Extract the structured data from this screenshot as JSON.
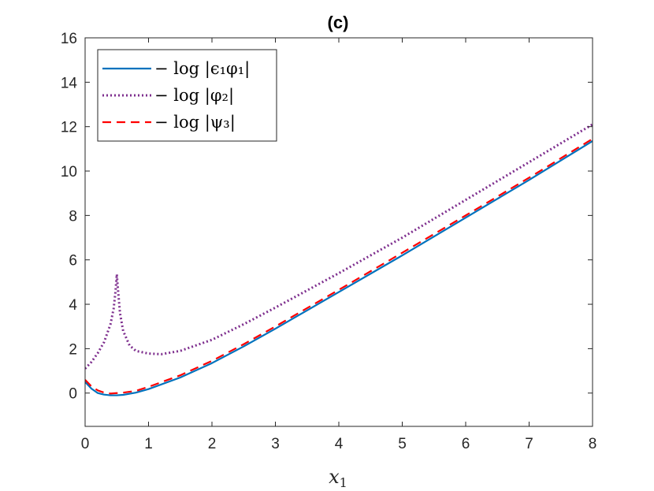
{
  "chart_data": {
    "type": "line",
    "title": "(c)",
    "xlabel": "x",
    "xlabel_subscript": "1",
    "ylabel": "",
    "xlim": [
      0,
      8
    ],
    "ylim": [
      -1.5,
      16
    ],
    "xticks": [
      0,
      1,
      2,
      3,
      4,
      5,
      6,
      7,
      8
    ],
    "yticks": [
      0,
      2,
      4,
      6,
      8,
      10,
      12,
      14,
      16
    ],
    "grid": false,
    "legend_position": "top-left",
    "series": [
      {
        "name": "− log |ϵ₁φ₁|",
        "color": "#0072BD",
        "style": "solid",
        "x": [
          0,
          0.1,
          0.2,
          0.3,
          0.4,
          0.5,
          0.6,
          0.8,
          1.0,
          1.5,
          2.0,
          2.5,
          3.0,
          4.0,
          5.0,
          6.0,
          7.0,
          8.0
        ],
        "y": [
          0.5,
          0.2,
          0.0,
          -0.07,
          -0.1,
          -0.1,
          -0.08,
          0.02,
          0.18,
          0.7,
          1.35,
          2.1,
          2.9,
          4.55,
          6.2,
          7.9,
          9.6,
          11.35
        ]
      },
      {
        "name": "− log |φ₂|",
        "color": "#7E2F8E",
        "style": "dotted",
        "x": [
          0,
          0.1,
          0.2,
          0.3,
          0.4,
          0.45,
          0.48,
          0.5,
          0.52,
          0.55,
          0.6,
          0.7,
          0.8,
          1.0,
          1.2,
          1.5,
          2.0,
          2.5,
          3.0,
          4.0,
          5.0,
          6.0,
          7.0,
          8.0
        ],
        "y": [
          1.1,
          1.4,
          1.8,
          2.3,
          3.1,
          3.8,
          4.6,
          5.35,
          4.6,
          3.6,
          2.8,
          2.15,
          1.9,
          1.78,
          1.75,
          1.9,
          2.4,
          3.1,
          3.85,
          5.4,
          7.0,
          8.7,
          10.4,
          12.1
        ]
      },
      {
        "name": "− log |ψ₃|",
        "color": "#FF0000",
        "style": "dashed",
        "x": [
          0,
          0.1,
          0.2,
          0.3,
          0.4,
          0.5,
          0.6,
          0.8,
          1.0,
          1.5,
          2.0,
          2.5,
          3.0,
          4.0,
          5.0,
          6.0,
          7.0,
          8.0
        ],
        "y": [
          0.6,
          0.3,
          0.12,
          0.02,
          -0.02,
          0.0,
          0.02,
          0.1,
          0.28,
          0.8,
          1.45,
          2.2,
          3.0,
          4.65,
          6.32,
          8.0,
          9.7,
          11.45
        ]
      }
    ]
  }
}
